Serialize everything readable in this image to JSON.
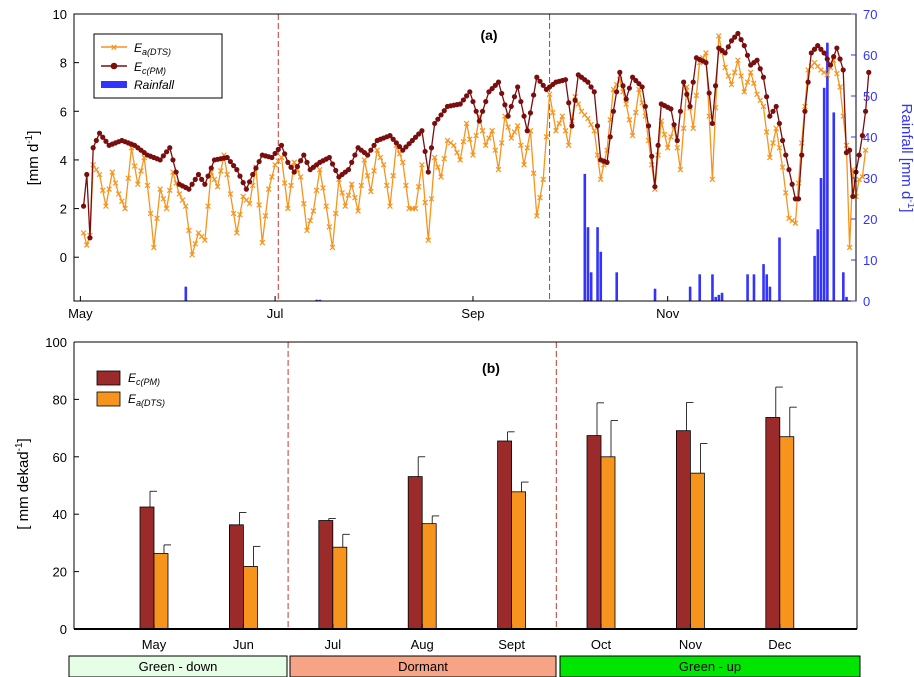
{
  "colors": {
    "ea": "#F7941D",
    "ec": "#7A0E0E",
    "ec_bar": "#9B2B2B",
    "rain": "#3333FF",
    "vline": "#C0392B",
    "green_down": "#E6FDE6",
    "dormant": "#F7A386",
    "green_up": "#00E600"
  },
  "panels": {
    "a": {
      "label": "(a)",
      "ylabel": "[mm d",
      "ylabel_sup": "-1",
      "ylabel_end": "]",
      "y2label": "Rainfall [mm d",
      "y2label_sup": "-1",
      "y2label_end": "]",
      "legend": {
        "ea": "E",
        "ea_sub": "a(DTS)",
        "ec": "E",
        "ec_sub": "c(PM)",
        "rain": "Rainfall"
      }
    },
    "b": {
      "label": "(b)",
      "ylabel": "[ mm dekad",
      "ylabel_sup": "-1",
      "ylabel_end": "]",
      "legend": {
        "ec": "E",
        "ec_sub": "c(PM)",
        "ea": "E",
        "ea_sub": "a(DTS)"
      }
    }
  },
  "phases": [
    {
      "label": "Green - down"
    },
    {
      "label": "Dormant"
    },
    {
      "label": "Green - up"
    }
  ],
  "chart_data": [
    {
      "type": "line",
      "x_unit": "day index from start of record (May 2)",
      "xlim": [
        -3,
        242
      ],
      "ylim": [
        -1.8,
        10
      ],
      "y_ticks": [
        0,
        2,
        4,
        6,
        8,
        10
      ],
      "y2lim": [
        0,
        70
      ],
      "y2_ticks": [
        0,
        10,
        20,
        30,
        40,
        50,
        60,
        70
      ],
      "x_tick_labels": [
        {
          "label": "May",
          "x": -1
        },
        {
          "label": "Jul",
          "x": 60
        },
        {
          "label": "Sep",
          "x": 122
        },
        {
          "label": "Nov",
          "x": 183
        }
      ],
      "vlines_x": [
        61,
        146
      ],
      "series_ec_anchors": [
        [
          0,
          2.1
        ],
        [
          1,
          3.4
        ],
        [
          2,
          0.8
        ],
        [
          3,
          4.5
        ],
        [
          5,
          5.1
        ],
        [
          8,
          4.6
        ],
        [
          12,
          4.8
        ],
        [
          16,
          4.6
        ],
        [
          20,
          4.2
        ],
        [
          24,
          4.0
        ],
        [
          27,
          4.5
        ],
        [
          30,
          3.0
        ],
        [
          33,
          2.8
        ],
        [
          36,
          3.4
        ],
        [
          38,
          3.0
        ],
        [
          41,
          4.0
        ],
        [
          45,
          4.1
        ],
        [
          48,
          3.6
        ],
        [
          51,
          2.8
        ],
        [
          53,
          3.4
        ],
        [
          56,
          4.2
        ],
        [
          59,
          4.1
        ],
        [
          62,
          4.6
        ],
        [
          64,
          3.9
        ],
        [
          66,
          3.5
        ],
        [
          69,
          4.2
        ],
        [
          71,
          3.6
        ],
        [
          74,
          3.9
        ],
        [
          77,
          4.1
        ],
        [
          80,
          3.3
        ],
        [
          83,
          3.6
        ],
        [
          86,
          4.5
        ],
        [
          89,
          4.2
        ],
        [
          92,
          4.8
        ],
        [
          96,
          5.0
        ],
        [
          100,
          4.4
        ],
        [
          103,
          4.8
        ],
        [
          106,
          5.2
        ],
        [
          108,
          3.5
        ],
        [
          110,
          5.5
        ],
        [
          114,
          6.2
        ],
        [
          118,
          6.3
        ],
        [
          121,
          6.8
        ],
        [
          124,
          5.6
        ],
        [
          127,
          6.8
        ],
        [
          130,
          7.2
        ],
        [
          133,
          5.8
        ],
        [
          136,
          7.0
        ],
        [
          139,
          5.2
        ],
        [
          142,
          7.4
        ],
        [
          145,
          6.9
        ],
        [
          148,
          7.2
        ],
        [
          151,
          7.3
        ],
        [
          153,
          5.4
        ],
        [
          155,
          7.5
        ],
        [
          158,
          7.2
        ],
        [
          160,
          6.8
        ],
        [
          162,
          4.0
        ],
        [
          164,
          3.9
        ],
        [
          166,
          6.0
        ],
        [
          168,
          7.6
        ],
        [
          170,
          6.5
        ],
        [
          172,
          7.4
        ],
        [
          175,
          7.0
        ],
        [
          177,
          5.4
        ],
        [
          179,
          2.9
        ],
        [
          181,
          6.3
        ],
        [
          184,
          6.1
        ],
        [
          186,
          4.8
        ],
        [
          188,
          7.2
        ],
        [
          190,
          6.2
        ],
        [
          192,
          8.2
        ],
        [
          195,
          8.0
        ],
        [
          197,
          5.5
        ],
        [
          199,
          8.6
        ],
        [
          201,
          8.4
        ],
        [
          203,
          8.9
        ],
        [
          205,
          9.2
        ],
        [
          207,
          8.7
        ],
        [
          209,
          7.9
        ],
        [
          211,
          8.1
        ],
        [
          213,
          7.4
        ],
        [
          215,
          5.8
        ],
        [
          217,
          6.2
        ],
        [
          219,
          4.8
        ],
        [
          221,
          3.6
        ],
        [
          223,
          2.4
        ],
        [
          224,
          2.4
        ],
        [
          226,
          6.0
        ],
        [
          228,
          8.4
        ],
        [
          230,
          8.7
        ],
        [
          232,
          8.4
        ],
        [
          234,
          7.9
        ],
        [
          236,
          8.6
        ],
        [
          238,
          7.7
        ],
        [
          239,
          4.3
        ],
        [
          240,
          4.4
        ],
        [
          241,
          2.5
        ],
        [
          242,
          3.5
        ],
        [
          243,
          4.2
        ],
        [
          244,
          5.0
        ],
        [
          245,
          6.0
        ],
        [
          246,
          7.6
        ]
      ],
      "series_ea_anchors": [
        [
          0,
          1.0
        ],
        [
          1,
          0.5
        ],
        [
          2,
          0.9
        ],
        [
          3,
          3.8
        ],
        [
          5,
          3.4
        ],
        [
          7,
          2.1
        ],
        [
          9,
          3.5
        ],
        [
          11,
          2.6
        ],
        [
          13,
          2.0
        ],
        [
          15,
          4.5
        ],
        [
          17,
          3.0
        ],
        [
          19,
          4.1
        ],
        [
          21,
          1.8
        ],
        [
          22,
          0.4
        ],
        [
          24,
          2.8
        ],
        [
          26,
          2.0
        ],
        [
          28,
          3.5
        ],
        [
          30,
          2.6
        ],
        [
          32,
          2.1
        ],
        [
          34,
          0.1
        ],
        [
          36,
          1.0
        ],
        [
          38,
          0.7
        ],
        [
          40,
          3.5
        ],
        [
          42,
          2.9
        ],
        [
          44,
          4.2
        ],
        [
          46,
          2.6
        ],
        [
          48,
          1.0
        ],
        [
          50,
          2.5
        ],
        [
          52,
          2.2
        ],
        [
          54,
          3.7
        ],
        [
          56,
          0.6
        ],
        [
          58,
          2.8
        ],
        [
          60,
          3.8
        ],
        [
          62,
          4.1
        ],
        [
          64,
          2.0
        ],
        [
          66,
          3.9
        ],
        [
          68,
          3.3
        ],
        [
          70,
          1.1
        ],
        [
          72,
          1.9
        ],
        [
          74,
          3.6
        ],
        [
          76,
          2.1
        ],
        [
          78,
          0.4
        ],
        [
          80,
          3.2
        ],
        [
          82,
          2.1
        ],
        [
          84,
          3.0
        ],
        [
          86,
          1.9
        ],
        [
          88,
          4.0
        ],
        [
          90,
          2.7
        ],
        [
          92,
          4.4
        ],
        [
          94,
          3.8
        ],
        [
          96,
          2.1
        ],
        [
          98,
          4.6
        ],
        [
          100,
          3.9
        ],
        [
          102,
          2.0
        ],
        [
          104,
          2.0
        ],
        [
          106,
          3.8
        ],
        [
          108,
          0.7
        ],
        [
          110,
          4.1
        ],
        [
          112,
          3.3
        ],
        [
          114,
          4.8
        ],
        [
          116,
          4.6
        ],
        [
          118,
          4.0
        ],
        [
          120,
          5.5
        ],
        [
          122,
          4.2
        ],
        [
          124,
          5.8
        ],
        [
          126,
          4.6
        ],
        [
          128,
          5.2
        ],
        [
          130,
          3.6
        ],
        [
          132,
          5.8
        ],
        [
          134,
          4.9
        ],
        [
          136,
          5.4
        ],
        [
          138,
          3.8
        ],
        [
          140,
          5.2
        ],
        [
          142,
          1.7
        ],
        [
          144,
          3.2
        ],
        [
          146,
          6.7
        ],
        [
          148,
          5.2
        ],
        [
          150,
          5.8
        ],
        [
          152,
          4.6
        ],
        [
          154,
          6.6
        ],
        [
          156,
          6.0
        ],
        [
          158,
          5.7
        ],
        [
          160,
          5.2
        ],
        [
          162,
          3.2
        ],
        [
          164,
          4.4
        ],
        [
          166,
          6.9
        ],
        [
          168,
          7.3
        ],
        [
          170,
          6.3
        ],
        [
          172,
          5.0
        ],
        [
          174,
          6.9
        ],
        [
          176,
          5.8
        ],
        [
          178,
          3.8
        ],
        [
          179,
          2.8
        ],
        [
          181,
          5.6
        ],
        [
          183,
          4.5
        ],
        [
          185,
          5.4
        ],
        [
          187,
          3.6
        ],
        [
          189,
          7.0
        ],
        [
          191,
          5.3
        ],
        [
          193,
          8.0
        ],
        [
          195,
          8.4
        ],
        [
          197,
          3.2
        ],
        [
          199,
          9.1
        ],
        [
          201,
          7.8
        ],
        [
          203,
          7.1
        ],
        [
          205,
          8.1
        ],
        [
          207,
          6.8
        ],
        [
          209,
          7.6
        ],
        [
          211,
          6.7
        ],
        [
          213,
          6.2
        ],
        [
          215,
          4.1
        ],
        [
          217,
          5.3
        ],
        [
          219,
          3.7
        ],
        [
          221,
          1.6
        ],
        [
          223,
          1.4
        ],
        [
          225,
          4.7
        ],
        [
          227,
          7.7
        ],
        [
          229,
          8.0
        ],
        [
          231,
          7.7
        ],
        [
          233,
          7.5
        ],
        [
          235,
          8.1
        ],
        [
          237,
          7.0
        ],
        [
          239,
          4.6
        ],
        [
          240,
          0.4
        ],
        [
          241,
          3.6
        ],
        [
          242,
          2.5
        ],
        [
          243,
          3.2
        ],
        [
          244,
          3.3
        ],
        [
          245,
          4.4
        ]
      ],
      "rainfall_bars": [
        [
          32,
          3.5
        ],
        [
          73,
          0.3
        ],
        [
          74,
          0.3
        ],
        [
          157,
          31
        ],
        [
          158,
          18
        ],
        [
          159,
          7
        ],
        [
          161,
          18
        ],
        [
          162,
          12
        ],
        [
          167,
          7
        ],
        [
          179,
          3
        ],
        [
          190,
          3.5
        ],
        [
          193,
          6.5
        ],
        [
          197,
          6.5
        ],
        [
          198,
          1.0
        ],
        [
          199,
          1.5
        ],
        [
          200,
          2.0
        ],
        [
          208,
          6.5
        ],
        [
          210,
          6.5
        ],
        [
          213,
          9
        ],
        [
          214,
          6.5
        ],
        [
          215,
          3.5
        ],
        [
          218,
          15.5
        ],
        [
          229,
          11
        ],
        [
          230,
          17.5
        ],
        [
          231,
          30
        ],
        [
          232,
          52
        ],
        [
          233,
          63
        ],
        [
          235,
          46
        ],
        [
          238,
          7
        ],
        [
          239,
          1.0
        ]
      ]
    },
    {
      "type": "bar",
      "categories": [
        "May",
        "Jun",
        "Jul",
        "Aug",
        "Sept",
        "Oct",
        "Nov",
        "Dec"
      ],
      "ylim": [
        0,
        100
      ],
      "y_ticks": [
        0,
        20,
        40,
        60,
        80,
        100
      ],
      "vlines_after_category": [
        1,
        4
      ],
      "series": [
        {
          "key": "ec",
          "values": [
            42.5,
            36.3,
            37.8,
            53.1,
            65.5,
            67.4,
            69.1,
            73.7
          ],
          "err": [
            5.5,
            4.3,
            0.7,
            6.9,
            3.2,
            11.4,
            9.8,
            10.6
          ]
        },
        {
          "key": "ea",
          "values": [
            26.3,
            21.8,
            28.5,
            36.7,
            47.8,
            60.0,
            54.3,
            67.0
          ],
          "err": [
            3.0,
            7.0,
            4.5,
            2.7,
            3.4,
            12.6,
            10.3,
            10.3
          ]
        }
      ]
    }
  ]
}
